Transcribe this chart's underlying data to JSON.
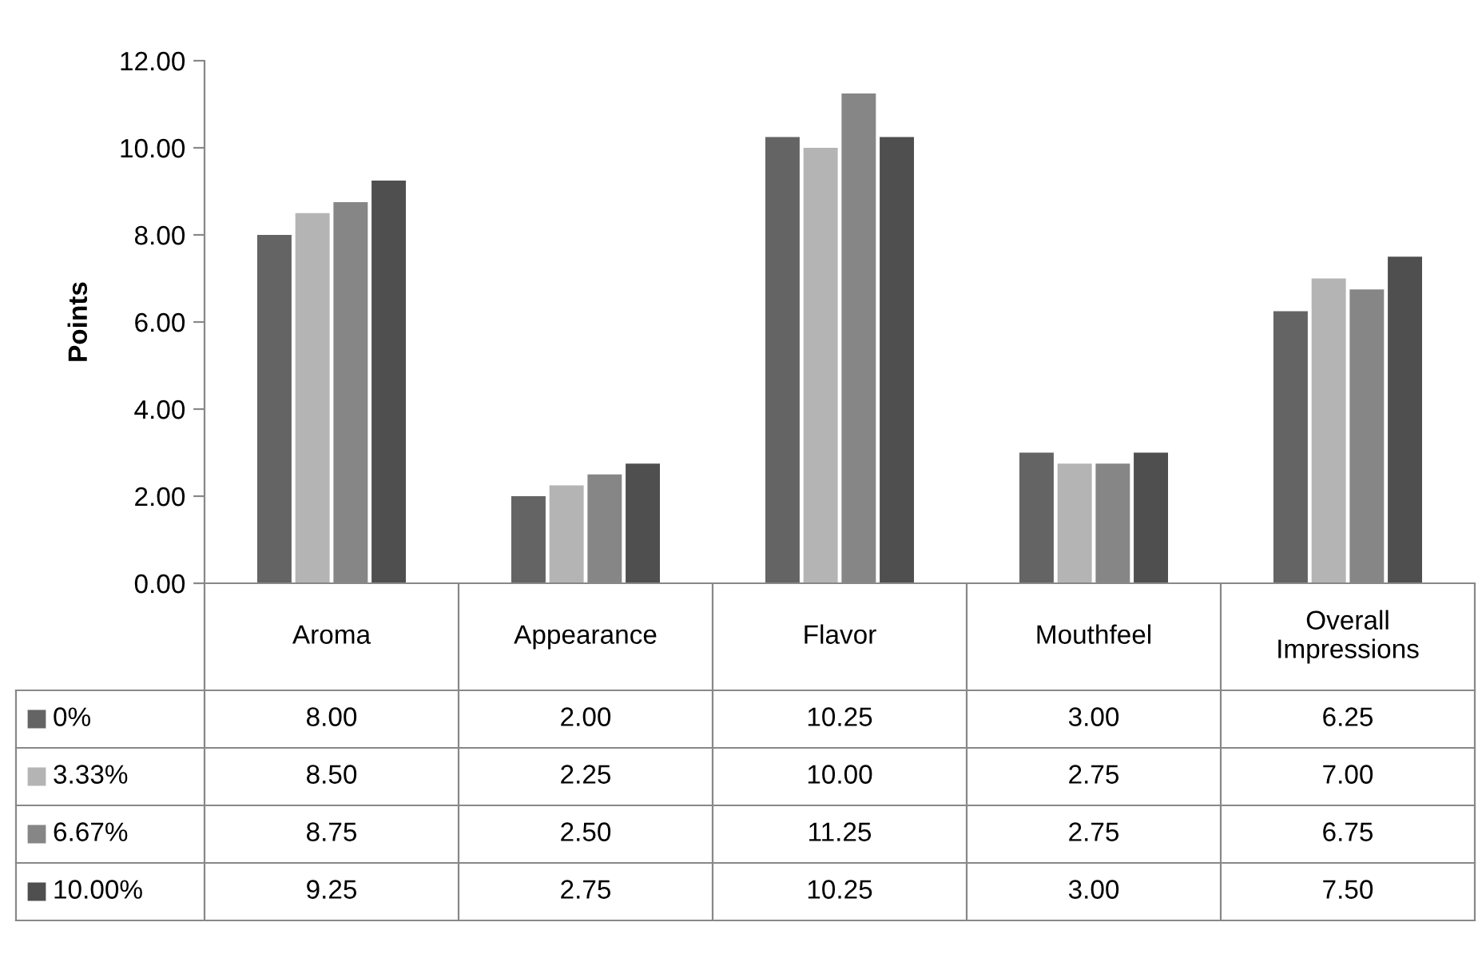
{
  "chart_data": {
    "type": "bar",
    "ylabel": "Points",
    "categories": [
      "Aroma",
      "Appearance",
      "Flavor",
      "Mouthfeel",
      "Overall Impressions"
    ],
    "series": [
      {
        "name": "0%",
        "color": "#646464",
        "values": [
          8.0,
          2.0,
          10.25,
          3.0,
          6.25
        ],
        "value_labels": [
          "8.00",
          "2.00",
          "10.25",
          "3.00",
          "6.25"
        ]
      },
      {
        "name": "3.33%",
        "color": "#b4b4b4",
        "values": [
          8.5,
          2.25,
          10.0,
          2.75,
          7.0
        ],
        "value_labels": [
          "8.50",
          "2.25",
          "10.00",
          "2.75",
          "7.00"
        ]
      },
      {
        "name": "6.67%",
        "color": "#868686",
        "values": [
          8.75,
          2.5,
          11.25,
          2.75,
          6.75
        ],
        "value_labels": [
          "8.75",
          "2.50",
          "11.25",
          "2.75",
          "6.75"
        ]
      },
      {
        "name": "10.00%",
        "color": "#4f4f4f",
        "values": [
          9.25,
          2.75,
          10.25,
          3.0,
          7.5
        ],
        "value_labels": [
          "9.25",
          "2.75",
          "10.25",
          "3.00",
          "7.50"
        ]
      }
    ],
    "ylim": [
      0,
      12
    ],
    "yticks": [
      {
        "value": 0,
        "label": "0.00"
      },
      {
        "value": 2,
        "label": "2.00"
      },
      {
        "value": 4,
        "label": "4.00"
      },
      {
        "value": 6,
        "label": "6.00"
      },
      {
        "value": 8,
        "label": "8.00"
      },
      {
        "value": 10,
        "label": "10.00"
      },
      {
        "value": 12,
        "label": "12.00"
      }
    ],
    "legend": "bottom",
    "grid": false
  }
}
